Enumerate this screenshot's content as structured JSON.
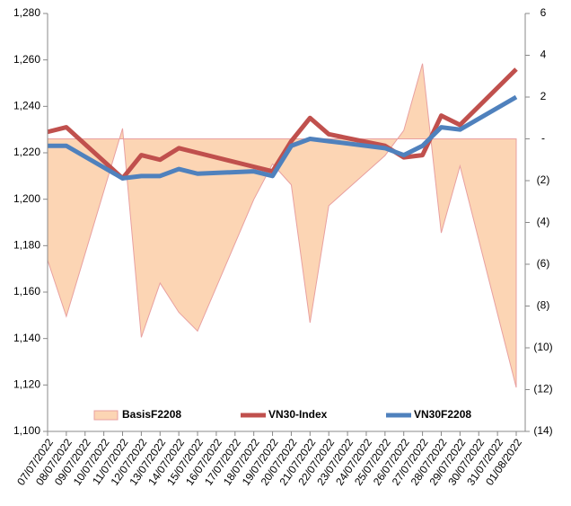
{
  "chart_data": {
    "type": "combo",
    "xticks": [
      "07/07/2022",
      "08/07/2022",
      "09/07/2022",
      "10/07/2022",
      "11/07/2022",
      "12/07/2022",
      "13/07/2022",
      "14/07/2022",
      "15/07/2022",
      "16/07/2022",
      "17/07/2022",
      "18/07/2022",
      "19/07/2022",
      "20/07/2022",
      "21/07/2022",
      "22/07/2022",
      "23/07/2022",
      "24/07/2022",
      "25/07/2022",
      "26/07/2022",
      "27/07/2022",
      "28/07/2022",
      "29/07/2022",
      "30/07/2022",
      "31/07/2022",
      "01/08/2022"
    ],
    "x": [
      "07/07/2022",
      "08/07/2022",
      "11/07/2022",
      "12/07/2022",
      "13/07/2022",
      "14/07/2022",
      "15/07/2022",
      "18/07/2022",
      "19/07/2022",
      "20/07/2022",
      "21/07/2022",
      "22/07/2022",
      "25/07/2022",
      "26/07/2022",
      "27/07/2022",
      "28/07/2022",
      "29/07/2022",
      "01/08/2022"
    ],
    "series": [
      {
        "name": "BasisF2208",
        "type": "area",
        "axis": "y2",
        "color": "#fcd5b4",
        "edge_color": "#e8a0a0",
        "values": [
          -5.8,
          -8.5,
          0.5,
          -9.5,
          -6.9,
          -8.3,
          -9.2,
          -2.9,
          -1.2,
          -2.2,
          -8.8,
          -3.2,
          -0.8,
          0.4,
          3.6,
          -4.5,
          -1.3,
          -11.9
        ]
      },
      {
        "name": "VN30-Index",
        "type": "line",
        "color": "#c0504d",
        "values": [
          1229,
          1231,
          1209,
          1219,
          1217,
          1222,
          1220,
          1214,
          1212,
          1225,
          1235,
          1228,
          1223,
          1218,
          1219,
          1236,
          1232,
          1256
        ]
      },
      {
        "name": "VN30F2208",
        "type": "line",
        "color": "#4f81bd",
        "values": [
          1223,
          1223,
          1209,
          1210,
          1210,
          1213,
          1211,
          1212,
          1210,
          1223,
          1226,
          1225,
          1222,
          1219,
          1223,
          1231,
          1230,
          1244
        ]
      }
    ],
    "ylim": [
      1100,
      1280
    ],
    "yticks": [
      {
        "value": 1100,
        "label": "1,100"
      },
      {
        "value": 1120,
        "label": "1,120"
      },
      {
        "value": 1140,
        "label": "1,140"
      },
      {
        "value": 1160,
        "label": "1,160"
      },
      {
        "value": 1180,
        "label": "1,180"
      },
      {
        "value": 1200,
        "label": "1,200"
      },
      {
        "value": 1220,
        "label": "1,220"
      },
      {
        "value": 1240,
        "label": "1,240"
      },
      {
        "value": 1260,
        "label": "1,260"
      },
      {
        "value": 1280,
        "label": "1,280"
      }
    ],
    "y2lim": [
      -14,
      6
    ],
    "y2ticks": [
      {
        "value": -14,
        "label": "(14)"
      },
      {
        "value": -12,
        "label": "(12)"
      },
      {
        "value": -10,
        "label": "(10)"
      },
      {
        "value": -8,
        "label": "(8)"
      },
      {
        "value": -6,
        "label": "(6)"
      },
      {
        "value": -4,
        "label": "(4)"
      },
      {
        "value": -2,
        "label": "(2)"
      },
      {
        "value": 0,
        "label": "-"
      },
      2,
      4,
      6
    ],
    "legend": "bottom"
  }
}
